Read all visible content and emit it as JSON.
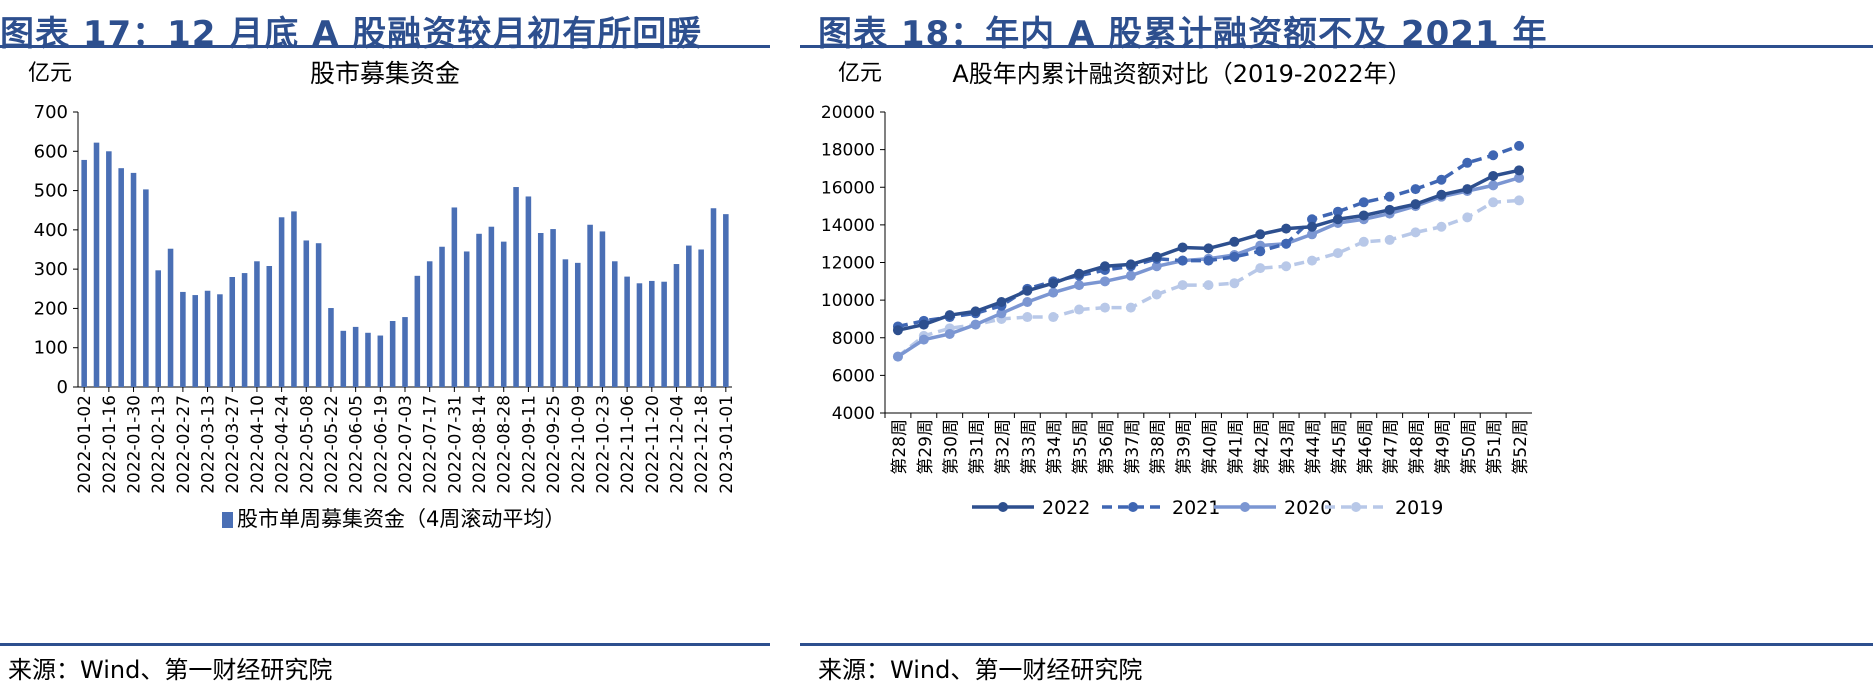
{
  "panels": [
    {
      "title": "图表 17：12 月底 A 股融资较月初有所回暖",
      "source": "来源：Wind、第一财经研究院"
    },
    {
      "title": "图表 18：年内 A 股累计融资额不及 2021 年",
      "source": "来源：Wind、第一财经研究院"
    }
  ],
  "chart_data": [
    {
      "type": "bar",
      "title": "股市募集资金",
      "unit_label": "亿元",
      "ylim": [
        0,
        700
      ],
      "yticks": [
        0,
        100,
        200,
        300,
        400,
        500,
        600,
        700
      ],
      "color": "#4a6fb5",
      "series": [
        {
          "name": "股市单周募集资金（4周滚动平均）",
          "values": [
            578,
            622,
            600,
            557,
            545,
            503,
            297,
            352,
            242,
            234,
            245,
            236,
            280,
            290,
            320,
            308,
            432,
            447,
            373,
            366,
            201,
            143,
            153,
            138,
            131,
            168,
            178,
            283,
            320,
            357,
            457,
            345,
            390,
            408,
            370,
            509,
            485,
            392,
            402,
            325,
            316,
            413,
            396,
            320,
            281,
            264,
            270,
            268,
            313,
            360,
            350,
            455,
            440
          ]
        }
      ],
      "tick_labels": [
        "2022-01-02",
        "2022-01-16",
        "2022-01-30",
        "2022-02-13",
        "2022-02-27",
        "2022-03-13",
        "2022-03-27",
        "2022-04-10",
        "2022-04-24",
        "2022-05-08",
        "2022-05-22",
        "2022-06-05",
        "2022-06-19",
        "2022-07-03",
        "2022-07-17",
        "2022-07-31",
        "2022-08-14",
        "2022-08-28",
        "2022-09-11",
        "2022-09-25",
        "2022-10-09",
        "2022-10-23",
        "2022-11-06",
        "2022-11-20",
        "2022-12-04",
        "2022-12-18",
        "2023-01-01"
      ]
    },
    {
      "type": "line",
      "title": "A股年内累计融资额对比（2019-2022年）",
      "unit_label": "亿元",
      "ylim": [
        4000,
        20000
      ],
      "yticks": [
        4000,
        6000,
        8000,
        10000,
        12000,
        14000,
        16000,
        18000,
        20000
      ],
      "categories": [
        "第28周",
        "第29周",
        "第30周",
        "第31周",
        "第32周",
        "第33周",
        "第34周",
        "第35周",
        "第36周",
        "第37周",
        "第38周",
        "第39周",
        "第40周",
        "第41周",
        "第42周",
        "第43周",
        "第44周",
        "第45周",
        "第46周",
        "第47周",
        "第48周",
        "第49周",
        "第50周",
        "第51周",
        "第52周"
      ],
      "series": [
        {
          "name": "2022",
          "color": "#2d4f8e",
          "dashed": false,
          "values": [
            8400,
            8700,
            9200,
            9400,
            9900,
            10500,
            10900,
            11400,
            11800,
            11900,
            12300,
            12800,
            12750,
            13100,
            13500,
            13800,
            13900,
            14300,
            14500,
            14800,
            15100,
            15600,
            15900,
            16600,
            16900
          ]
        },
        {
          "name": "2021",
          "color": "#3f66b3",
          "dashed": true,
          "values": [
            8600,
            8900,
            9100,
            9300,
            9700,
            10600,
            11000,
            11300,
            11600,
            11800,
            12200,
            12100,
            12100,
            12300,
            12600,
            13000,
            14300,
            14700,
            15200,
            15500,
            15900,
            16400,
            17300,
            17700,
            18200
          ]
        },
        {
          "name": "2020",
          "color": "#7b96d2",
          "dashed": false,
          "values": [
            7000,
            7900,
            8200,
            8700,
            9300,
            9900,
            10400,
            10800,
            11000,
            11300,
            11800,
            12100,
            12200,
            12400,
            12900,
            13000,
            13500,
            14100,
            14300,
            14600,
            15000,
            15500,
            15800,
            16100,
            16500
          ]
        },
        {
          "name": "2019",
          "color": "#b8c8e8",
          "dashed": true,
          "values": [
            7000,
            8100,
            8500,
            8700,
            9000,
            9100,
            9100,
            9500,
            9600,
            9600,
            10300,
            10800,
            10800,
            10900,
            11700,
            11800,
            12100,
            12500,
            13100,
            13200,
            13600,
            13900,
            14400,
            15200,
            15300
          ]
        }
      ],
      "legend_position": "bottom"
    }
  ]
}
